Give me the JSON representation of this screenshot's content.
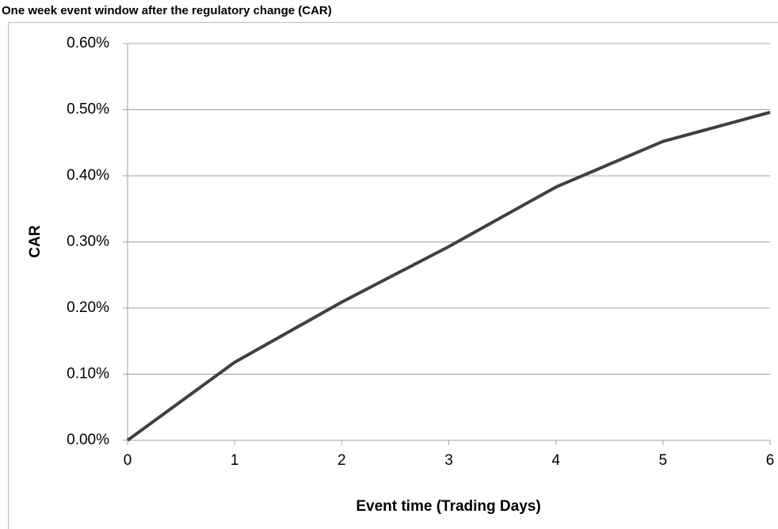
{
  "chart_data": {
    "type": "line",
    "title": "One week event window after the regulatory change (CAR)",
    "x_label": "Event time (Trading Days)",
    "y_label": "CAR",
    "x": [
      0,
      1,
      2,
      3,
      4,
      5,
      6
    ],
    "series": [
      {
        "name": "CAR",
        "color": "#404040",
        "values": [
          0,
          0.118,
          0.209,
          0.293,
          0.383,
          0.452,
          0.496
        ]
      }
    ],
    "xlim": [
      0,
      6
    ],
    "xticks": [
      0,
      1,
      2,
      3,
      4,
      5,
      6
    ],
    "ylim": [
      0,
      0.6
    ],
    "yticks": [
      {
        "value": 0,
        "label": "0.00%"
      },
      {
        "value": 0.1,
        "label": "0.10%"
      },
      {
        "value": 0.2,
        "label": "0.20%"
      },
      {
        "value": 0.3,
        "label": "0.30%"
      },
      {
        "value": 0.4,
        "label": "0.40%"
      },
      {
        "value": 0.5,
        "label": "0.50%"
      },
      {
        "value": 0.6,
        "label": "0.60%"
      }
    ],
    "grid": true
  }
}
